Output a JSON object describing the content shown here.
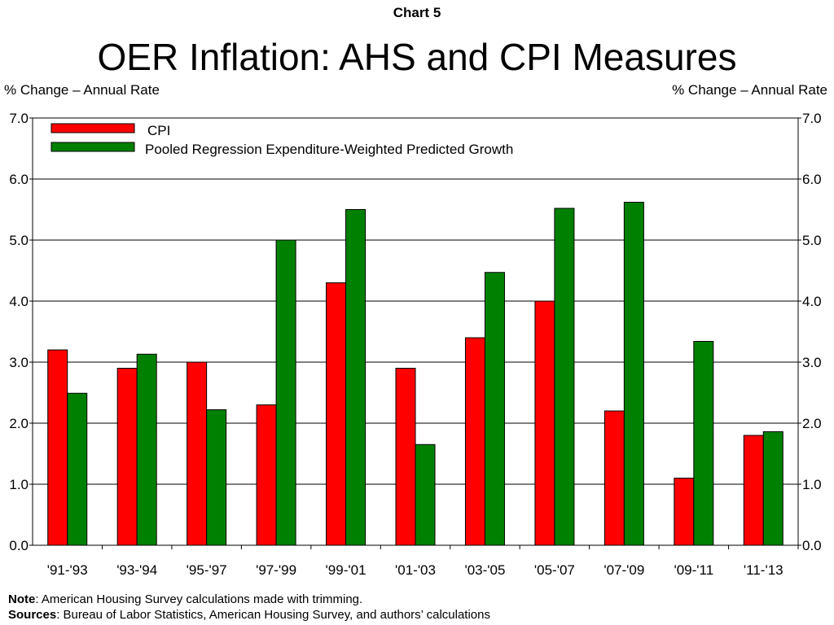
{
  "header": {
    "kicker": "Chart 5",
    "title": "OER Inflation: AHS and CPI Measures",
    "y_unit_left": "% Change – Annual Rate",
    "y_unit_right": "% Change – Annual Rate"
  },
  "chart_data": {
    "type": "bar",
    "title": "OER Inflation: AHS and CPI Measures",
    "categories": [
      "'91-'93",
      "'93-'94",
      "'95-'97",
      "'97-'99",
      "'99-'01",
      "'01-'03",
      "'03-'05",
      "'05-'07",
      "'07-'09",
      "'09-'11",
      "'11-'13"
    ],
    "series": [
      {
        "name": "CPI",
        "color": "#ff0000",
        "values": [
          3.2,
          2.9,
          3.0,
          2.3,
          4.3,
          2.9,
          3.4,
          4.0,
          2.2,
          1.1,
          1.8
        ]
      },
      {
        "name": "Pooled Regression Expenditure-Weighted Predicted Growth",
        "color": "#008000",
        "values": [
          2.49,
          3.13,
          2.22,
          5.0,
          5.5,
          1.65,
          4.47,
          5.52,
          5.62,
          3.34,
          1.86
        ]
      }
    ],
    "ylabel_left": "% Change – Annual Rate",
    "ylabel_right": "% Change – Annual Rate",
    "ylim": [
      0,
      7
    ],
    "yticks": [
      "0.0",
      "1.0",
      "2.0",
      "3.0",
      "4.0",
      "5.0",
      "6.0",
      "7.0"
    ],
    "grid": true,
    "legend_position": "top-left"
  },
  "footer": {
    "note_label": "Note",
    "note_text": ": American Housing Survey calculations made with trimming.",
    "sources_label": "Sources",
    "sources_text": ": Bureau of Labor Statistics, American Housing Survey, and authors’ calculations"
  }
}
